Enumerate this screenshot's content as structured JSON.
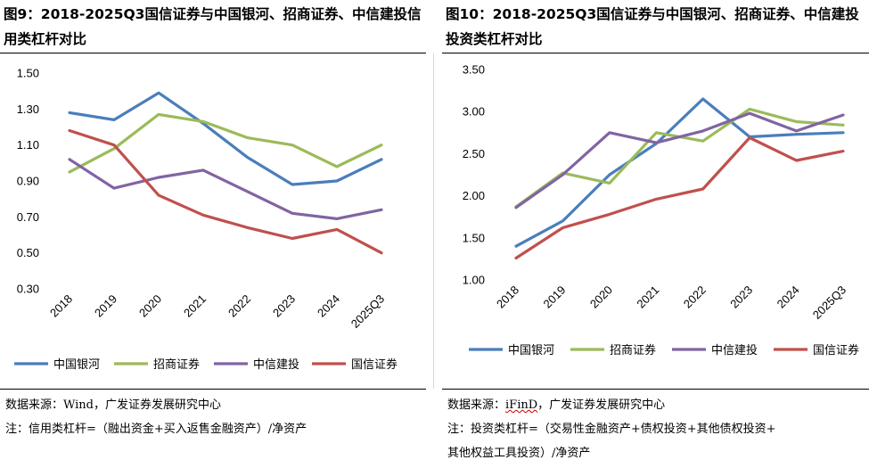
{
  "panels": [
    {
      "title": "图9：2018-2025Q3国信证券与中国银河、招商证券、中信建投信用类杠杆对比",
      "source": "数据来源：Wind，广发证券发展研究中心",
      "note_lines": [
        "注：信用类杠杆=（融出资金+买入返售金融资产）/净资产"
      ]
    },
    {
      "title": "图10：2018-2025Q3国信证券与中国银河、招商证券、中信建投投资类杠杆对比",
      "source_prefix": "数据来源：",
      "source_highlight": "iFinD",
      "source_suffix": "，广发证券发展研究中心",
      "note_lines": [
        "注：投资类杠杆=（交易性金融资产+债权投资+其他债权投资+",
        "其他权益工具投资）/净资产"
      ]
    }
  ],
  "chart_data": [
    {
      "type": "line",
      "title": "2018-2025Q3国信证券与中国银河、招商证券、中信建投信用类杠杆对比",
      "xlabel": "",
      "ylabel": "",
      "categories": [
        "2018",
        "2019",
        "2020",
        "2021",
        "2022",
        "2023",
        "2024",
        "2025Q3"
      ],
      "ylim": [
        0.3,
        1.5
      ],
      "yticks": [
        "1.50",
        "1.30",
        "1.10",
        "0.90",
        "0.70",
        "0.50",
        "0.30"
      ],
      "ytick_values": [
        1.5,
        1.3,
        1.1,
        0.9,
        0.7,
        0.5,
        0.3
      ],
      "grid": false,
      "legend_position": "bottom",
      "series": [
        {
          "name": "中国银河",
          "color": "#4a7ebb",
          "values": [
            1.28,
            1.24,
            1.39,
            1.22,
            1.03,
            0.88,
            0.9,
            1.02
          ]
        },
        {
          "name": "招商证券",
          "color": "#9bbb59",
          "values": [
            0.95,
            1.08,
            1.27,
            1.23,
            1.14,
            1.1,
            0.98,
            1.1
          ]
        },
        {
          "name": "中信建投",
          "color": "#8064a2",
          "values": [
            1.02,
            0.86,
            0.92,
            0.96,
            0.84,
            0.72,
            0.69,
            0.74
          ]
        },
        {
          "name": "国信证券",
          "color": "#c0504d",
          "values": [
            1.18,
            1.1,
            0.82,
            0.71,
            0.64,
            0.58,
            0.63,
            0.5
          ]
        }
      ]
    },
    {
      "type": "line",
      "title": "2018-2025Q3国信证券与中国银河、招商证券、中信建投投资类杠杆对比",
      "xlabel": "",
      "ylabel": "",
      "categories": [
        "2018",
        "2019",
        "2020",
        "2021",
        "2022",
        "2023",
        "2024",
        "2025Q3"
      ],
      "ylim": [
        1.0,
        3.5
      ],
      "yticks": [
        "3.50",
        "3.00",
        "2.50",
        "2.00",
        "1.50",
        "1.00"
      ],
      "ytick_values": [
        3.5,
        3.0,
        2.5,
        2.0,
        1.5,
        1.0
      ],
      "grid": false,
      "legend_position": "bottom",
      "series": [
        {
          "name": "中国银河",
          "color": "#4a7ebb",
          "values": [
            1.4,
            1.7,
            2.25,
            2.62,
            3.15,
            2.7,
            2.73,
            2.75
          ]
        },
        {
          "name": "招商证券",
          "color": "#9bbb59",
          "values": [
            1.87,
            2.27,
            2.15,
            2.75,
            2.65,
            3.03,
            2.88,
            2.84
          ]
        },
        {
          "name": "中信建投",
          "color": "#8064a2",
          "values": [
            1.86,
            2.25,
            2.75,
            2.63,
            2.77,
            2.98,
            2.77,
            2.96
          ]
        },
        {
          "name": "国信证券",
          "color": "#c0504d",
          "values": [
            1.26,
            1.62,
            1.78,
            1.96,
            2.08,
            2.69,
            2.42,
            2.53
          ]
        }
      ]
    }
  ]
}
